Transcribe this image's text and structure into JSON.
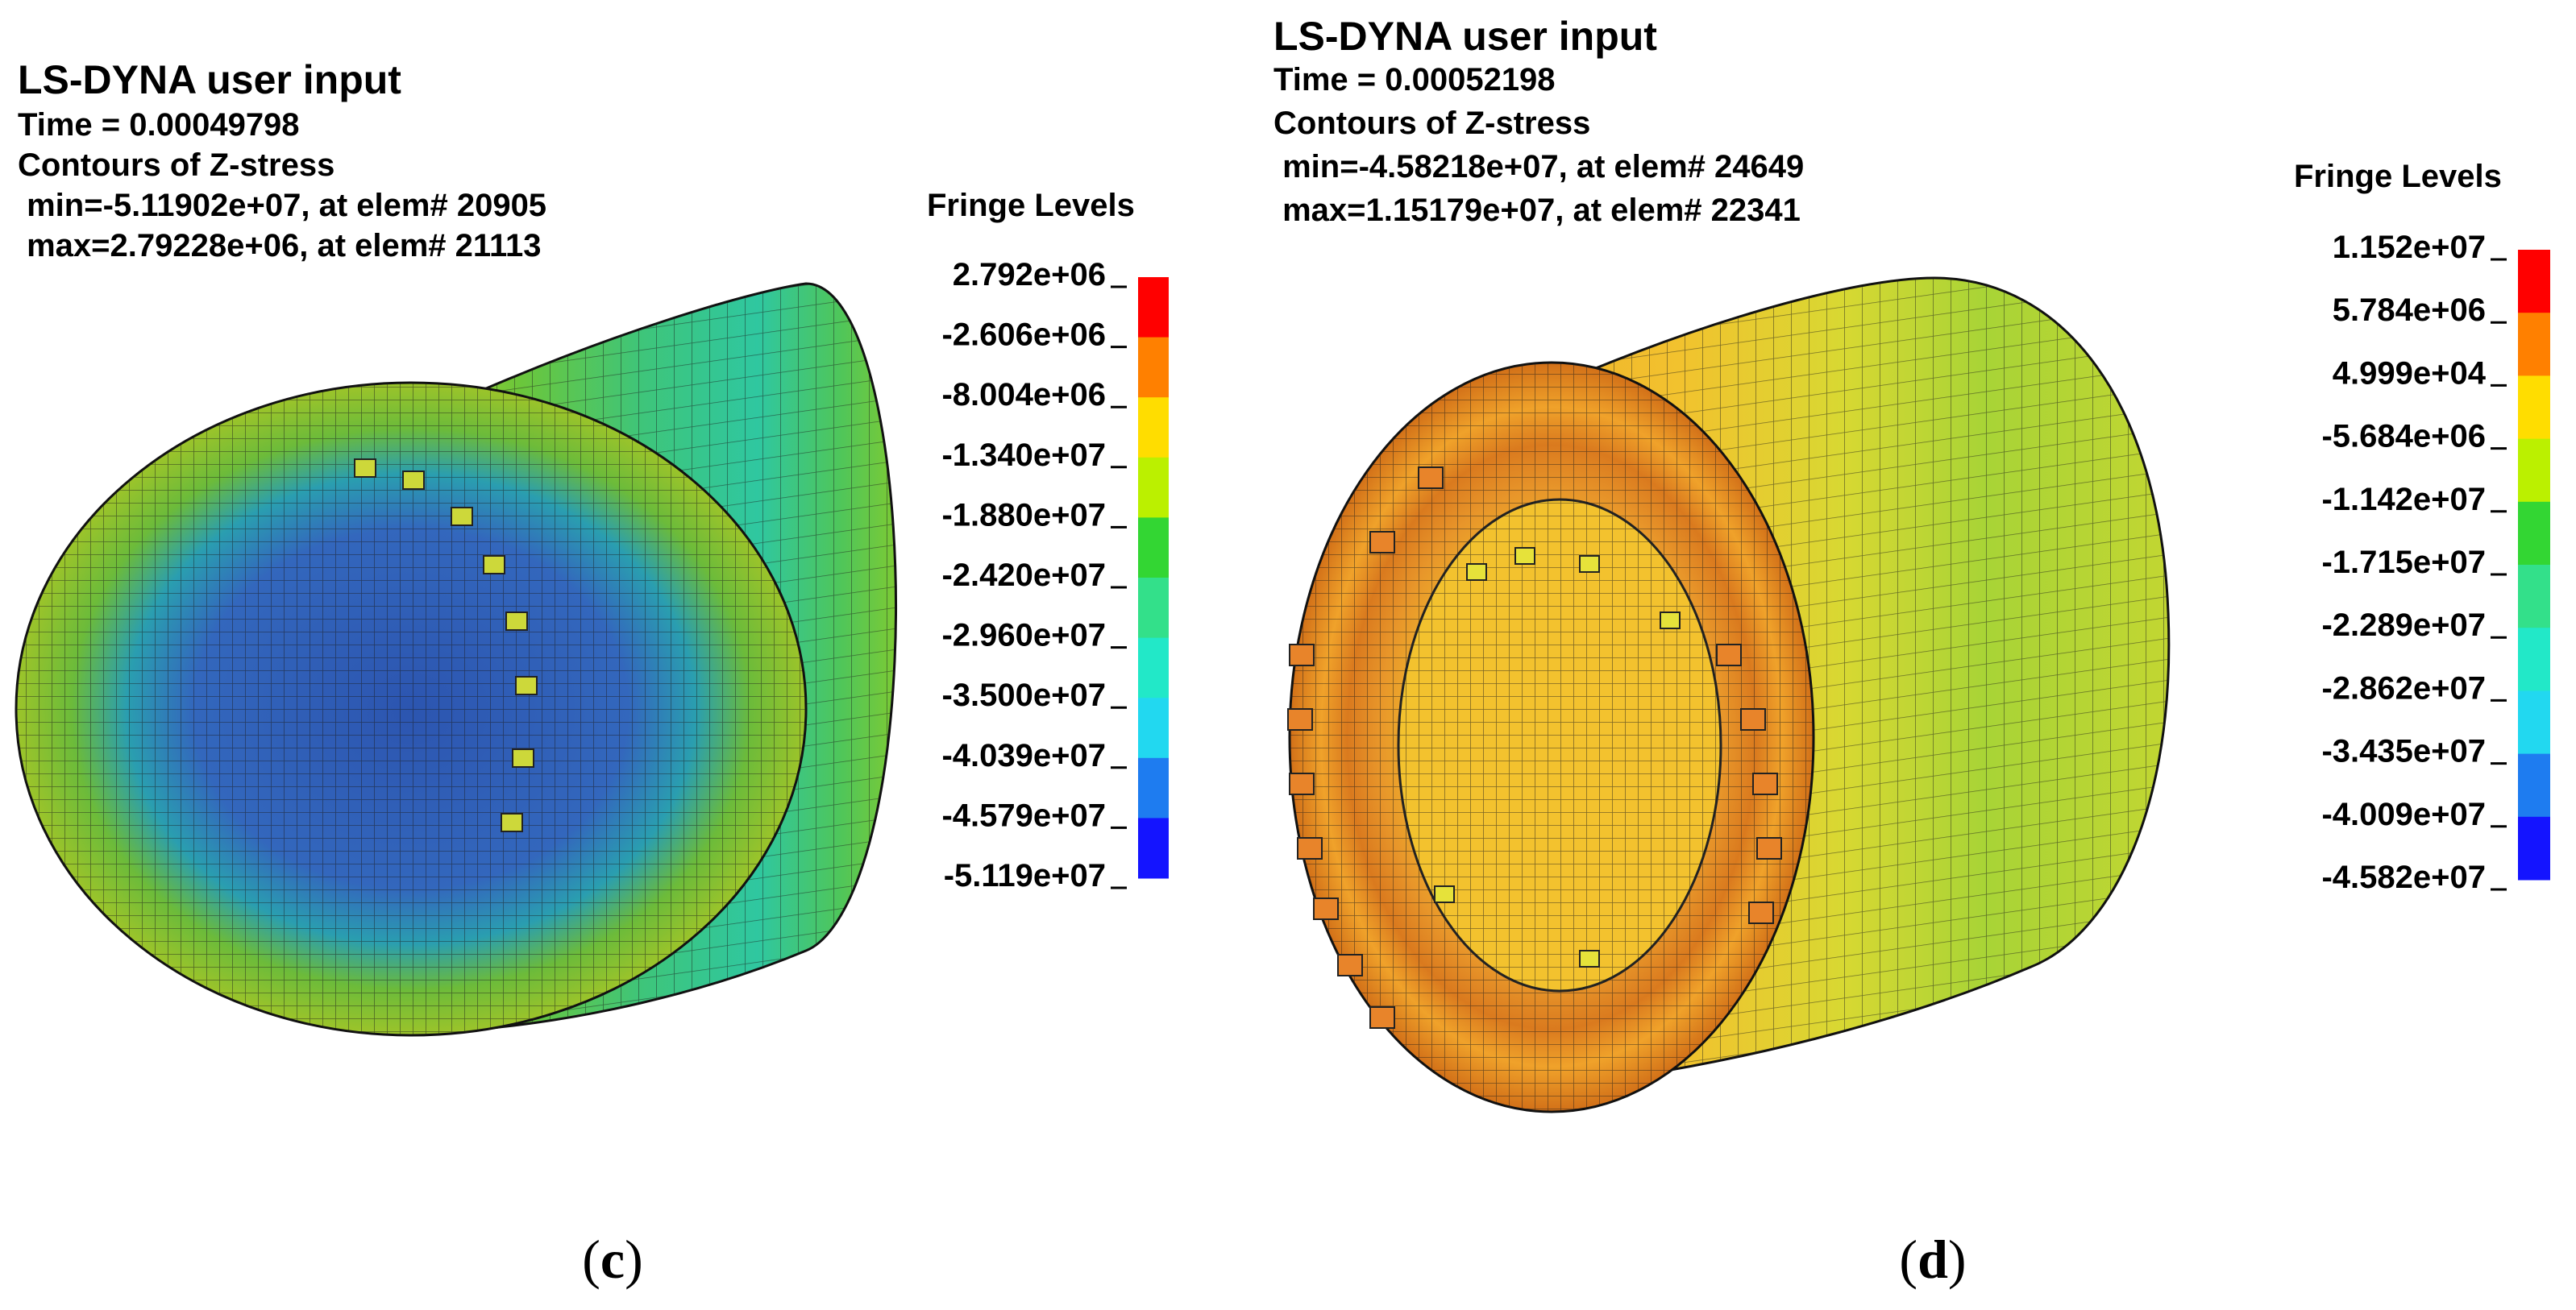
{
  "panels": [
    {
      "id": "c",
      "title": "LS-DYNA user input",
      "time": "Time =  0.00049798",
      "contour": "Contours of Z-stress",
      "min": " min=-5.11902e+07, at elem# 20905",
      "max": " max=2.79228e+06, at elem# 21113",
      "legend_title": "Fringe Levels",
      "levels": [
        "2.792e+06",
        "-2.606e+06",
        "-8.004e+06",
        "-1.340e+07",
        "-1.880e+07",
        "-2.420e+07",
        "-2.960e+07",
        "-3.500e+07",
        "-4.039e+07",
        "-4.579e+07",
        "-5.119e+07"
      ],
      "caption": "c"
    },
    {
      "id": "d",
      "title": "LS-DYNA user input",
      "time": "Time =  0.00052198",
      "contour": "Contours of Z-stress",
      "min": " min=-4.58218e+07, at elem# 24649",
      "max": " max=1.15179e+07, at elem# 22341",
      "legend_title": "Fringe Levels",
      "levels": [
        "1.152e+07",
        "5.784e+06",
        "4.999e+04",
        "-5.684e+06",
        "-1.142e+07",
        "-1.715e+07",
        "-2.289e+07",
        "-2.862e+07",
        "-3.435e+07",
        "-4.009e+07",
        "-4.582e+07"
      ],
      "caption": "d"
    }
  ],
  "fringe_colors": [
    "#ff0000",
    "#ff8000",
    "#ffdd00",
    "#bbf000",
    "#33d633",
    "#33e08a",
    "#22e8c8",
    "#22d8f0",
    "#1e7cf0",
    "#1414ff"
  ],
  "mesh_colors": {
    "c": {
      "face_outer": "#8cbf25",
      "face_mid": "#2aa6a2",
      "face_inner": "#2f5fb8",
      "side": "#55c23c",
      "side_band": "#2cc090",
      "teeth": "#c8d830"
    },
    "d": {
      "face_outer": "#d9761c",
      "face_mid": "#f0a22a",
      "face_inner": "#f0c62e",
      "side_front": "#f0bc2c",
      "side_mid": "#c8dc30",
      "side_back": "#8ece32",
      "teeth": "#e8842a"
    }
  }
}
